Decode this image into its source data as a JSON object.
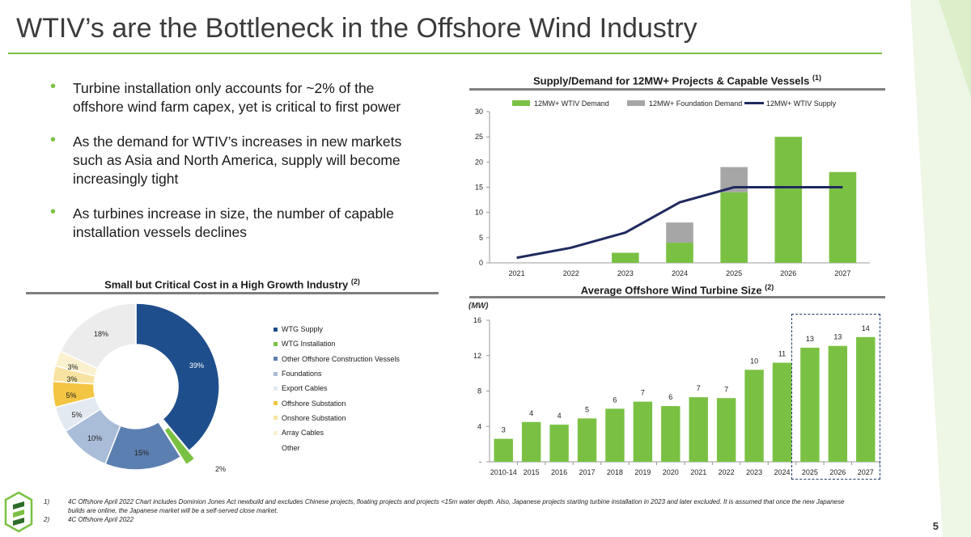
{
  "page": {
    "title": "WTIV’s are the Bottleneck in the Offshore Wind Industry",
    "page_number": "5"
  },
  "bullets": [
    "Turbine installation only accounts for ~2% of the offshore wind farm capex, yet is critical to first power",
    "As the demand for WTIV’s increases in new markets such as Asia and North America, supply will become increasingly tight",
    "As turbines increase in size, the number of capable installation vessels declines"
  ],
  "footnotes": [
    {
      "num": "1)",
      "text": "4C Offshore April 2022 Chart includes Dominion Jones Act newbuild and excludes Chinese projects, floating projects and projects <15m water depth. Also, Japanese projects starting turbine installation in 2023 and later excluded. It is assumed that once the new Japanese builds are online, the Japanese market will be a self-served close market."
    },
    {
      "num": "2)",
      "text": "4C Offshore April 2022"
    }
  ],
  "colors": {
    "green": "#7ac143",
    "grey": "#a6a6a6",
    "navy": "#1f2a5e",
    "blue_dark": "#1f4e8c"
  },
  "chart_data": [
    {
      "type": "bar",
      "id": "supply_demand",
      "title": "Supply/Demand for 12MW+ Projects & Capable Vessels",
      "title_sup": "(1)",
      "categories": [
        "2021",
        "2022",
        "2023",
        "2024",
        "2025",
        "2026",
        "2027"
      ],
      "series": [
        {
          "name": "12MW+ WTIV Demand",
          "kind": "bar",
          "color": "#7ac143",
          "values": [
            0,
            0,
            2,
            4,
            14,
            25,
            18
          ]
        },
        {
          "name": "12MW+ Foundation Demand",
          "kind": "bar_stacked",
          "color": "#a6a6a6",
          "values": [
            0,
            0,
            0,
            4,
            5,
            0,
            0
          ]
        },
        {
          "name": "12MW+ WTIV Supply",
          "kind": "line",
          "color": "#1f2a5e",
          "values": [
            1,
            3,
            6,
            12,
            15,
            15,
            15
          ]
        }
      ],
      "ylim": [
        0,
        30
      ],
      "yticks": [
        "0",
        "5",
        "10",
        "15",
        "20",
        "25",
        "30"
      ],
      "xlabel": "",
      "ylabel": "",
      "legend": "top"
    },
    {
      "type": "bar",
      "id": "turbine_size",
      "title": "Average Offshore Wind Turbine Size",
      "title_sup": "(2)",
      "unit_label": "(MW)",
      "categories": [
        "2010-14",
        "2015",
        "2016",
        "2017",
        "2018",
        "2019",
        "2020",
        "2021",
        "2022",
        "2023",
        "2024",
        "2025",
        "2026",
        "2027"
      ],
      "values": [
        2.6,
        4.5,
        4.2,
        4.9,
        6.0,
        6.8,
        6.3,
        7.3,
        7.2,
        10.4,
        11.2,
        12.9,
        13.1,
        14.1
      ],
      "value_labels": [
        "3",
        "4",
        "4",
        "5",
        "6",
        "7",
        "6",
        "7",
        "7",
        "10",
        "11",
        "13",
        "13",
        "14"
      ],
      "ylim": [
        0,
        16
      ],
      "yticks": [
        "-",
        "4",
        "8",
        "12",
        "16"
      ],
      "highlight": "2025-2027 forecast (dashed box)"
    },
    {
      "type": "pie",
      "id": "cost_breakdown",
      "title": "Small but Critical Cost in a High Growth Industry",
      "title_sup": "(2)",
      "slices": [
        {
          "label": "WTG Supply",
          "value": 39,
          "display": "39%",
          "color": "#1f4e8c"
        },
        {
          "label": "WTG Installation",
          "value": 2,
          "display": "2%",
          "color": "#7ac143"
        },
        {
          "label": "Other Offshore Construction Vessels",
          "value": 15,
          "display": "15%",
          "color": "#5b7fb0"
        },
        {
          "label": "Foundations",
          "value": 10,
          "display": "10%",
          "color": "#a9bcd8"
        },
        {
          "label": "Export Cables",
          "value": 5,
          "display": "5%",
          "color": "#e3e9f1"
        },
        {
          "label": "Offshore Substation",
          "value": 5,
          "display": "5%",
          "color": "#f4c542"
        },
        {
          "label": "Onshore Substation",
          "value": 3,
          "display": "3%",
          "color": "#f7e3a1"
        },
        {
          "label": "Array Cables",
          "value": 3,
          "display": "3%",
          "color": "#fbf1cf"
        },
        {
          "label": "Other",
          "value": 18,
          "display": "18%",
          "color": "#ececec"
        }
      ]
    }
  ]
}
